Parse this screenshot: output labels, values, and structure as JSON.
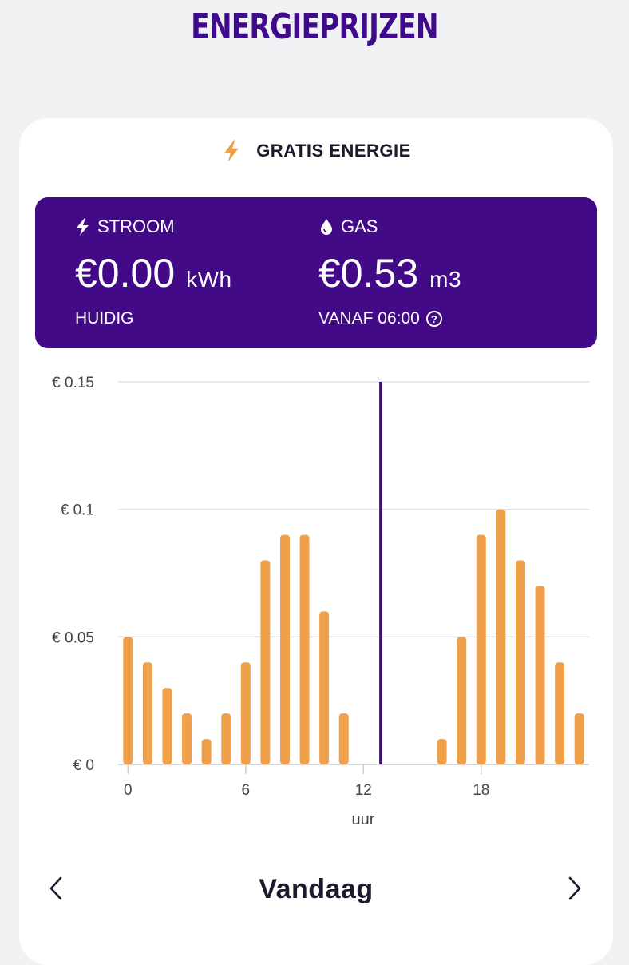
{
  "page_title": "ENERGIEPRIJZEN",
  "card": {
    "title": "GRATIS ENERGIE",
    "icon": "lightning-bolt-icon",
    "accent_color": "#f0a04b"
  },
  "prices": {
    "background": "#430a87",
    "stroom": {
      "label": "STROOM",
      "value": "€0.00",
      "unit": "kWh",
      "sub": "HUIDIG",
      "icon": "lightning-bolt-icon"
    },
    "gas": {
      "label": "GAS",
      "value": "€0.53",
      "unit": "m3",
      "sub": "VANAF 06:00",
      "icon": "droplet-icon",
      "help_icon": "question-circle-icon"
    }
  },
  "chart_data": {
    "type": "bar",
    "x": [
      0,
      1,
      2,
      3,
      4,
      5,
      6,
      7,
      8,
      9,
      10,
      11,
      12,
      13,
      14,
      15,
      16,
      17,
      18,
      19,
      20,
      21,
      22,
      23
    ],
    "values": [
      0.05,
      0.04,
      0.03,
      0.02,
      0.01,
      0.02,
      0.04,
      0.08,
      0.09,
      0.09,
      0.06,
      0.02,
      0,
      0,
      0,
      0,
      0.01,
      0.05,
      0.09,
      0.1,
      0.08,
      0.07,
      0.04,
      0.02
    ],
    "xticks": [
      0,
      6,
      12,
      18
    ],
    "xlabel": "uur",
    "ylabel": "",
    "yticks": [
      {
        "value": 0,
        "label": "€ 0"
      },
      {
        "value": 0.05,
        "label": "€ 0.05"
      },
      {
        "value": 0.1,
        "label": "€ 0.1"
      },
      {
        "value": 0.15,
        "label": "€ 0.15"
      }
    ],
    "ylim": [
      0,
      0.15
    ],
    "xlim": [
      -0.5,
      23.5
    ],
    "current_hour_marker": 13,
    "bar_color": "#f0a04b",
    "marker_color": "#430a87",
    "grid": true
  },
  "nav": {
    "label": "Vandaag",
    "prev_icon": "chevron-left-icon",
    "next_icon": "chevron-right-icon"
  }
}
